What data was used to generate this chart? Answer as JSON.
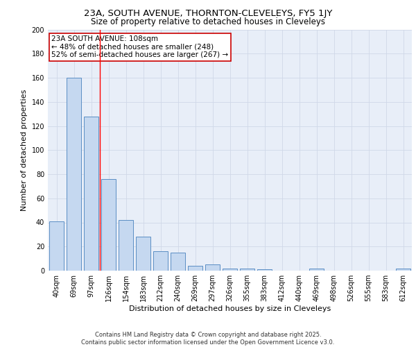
{
  "title1": "23A, SOUTH AVENUE, THORNTON-CLEVELEYS, FY5 1JY",
  "title2": "Size of property relative to detached houses in Cleveleys",
  "xlabel": "Distribution of detached houses by size in Cleveleys",
  "ylabel": "Number of detached properties",
  "categories": [
    "40sqm",
    "69sqm",
    "97sqm",
    "126sqm",
    "154sqm",
    "183sqm",
    "212sqm",
    "240sqm",
    "269sqm",
    "297sqm",
    "326sqm",
    "355sqm",
    "383sqm",
    "412sqm",
    "440sqm",
    "469sqm",
    "498sqm",
    "526sqm",
    "555sqm",
    "583sqm",
    "612sqm"
  ],
  "values": [
    41,
    160,
    128,
    76,
    42,
    28,
    16,
    15,
    4,
    5,
    2,
    2,
    1,
    0,
    0,
    2,
    0,
    0,
    0,
    0,
    2
  ],
  "bar_color": "#c5d8f0",
  "bar_edge_color": "#5b8ec4",
  "red_line_x": 2.5,
  "annotation_line1": "23A SOUTH AVENUE: 108sqm",
  "annotation_line2": "← 48% of detached houses are smaller (248)",
  "annotation_line3": "52% of semi-detached houses are larger (267) →",
  "annotation_box_color": "#ffffff",
  "annotation_edge_color": "#cc0000",
  "ylim": [
    0,
    200
  ],
  "yticks": [
    0,
    20,
    40,
    60,
    80,
    100,
    120,
    140,
    160,
    180,
    200
  ],
  "grid_color": "#d0d8e8",
  "background_color": "#e8eef8",
  "footer_text": "Contains HM Land Registry data © Crown copyright and database right 2025.\nContains public sector information licensed under the Open Government Licence v3.0.",
  "title_fontsize": 9.5,
  "subtitle_fontsize": 8.5,
  "tick_fontsize": 7,
  "ylabel_fontsize": 8,
  "xlabel_fontsize": 8,
  "footer_fontsize": 6,
  "annotation_fontsize": 7.5
}
